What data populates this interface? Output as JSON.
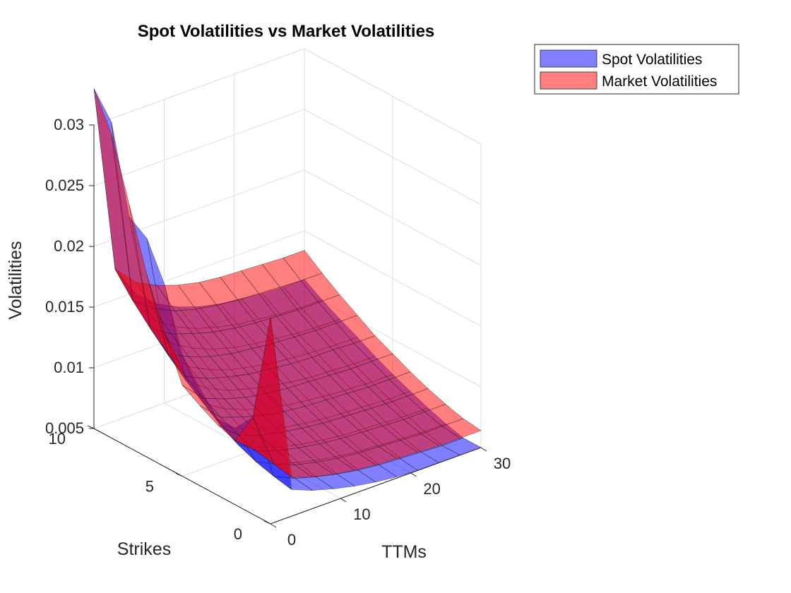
{
  "chart_data": {
    "type": "surface3d",
    "title": "Spot Volatilities vs Market Volatilities",
    "xlabel": "TTMs",
    "ylabel": "Strikes",
    "zlabel": "Volatilities",
    "xlim": [
      0,
      30
    ],
    "ylim": [
      0,
      10
    ],
    "zlim": [
      0.005,
      0.03
    ],
    "xticks": [
      "0",
      "10",
      "20",
      "30"
    ],
    "yticks": [
      "0",
      "5",
      "10"
    ],
    "zticks": [
      "0.005",
      "0.01",
      "0.015",
      "0.02",
      "0.025",
      "0.03"
    ],
    "grid": true,
    "legend_position": "outside-top-right",
    "x": [
      0,
      3,
      6,
      9,
      12,
      15,
      18,
      21,
      24,
      27,
      30
    ],
    "y": [
      0,
      1,
      2,
      3,
      4,
      5,
      6,
      7,
      8,
      9,
      10
    ],
    "series": [
      {
        "name": "Spot Volatilities",
        "color": "#0000ff",
        "opacity": 0.5,
        "z": [
          [
            0.022,
            0.0072,
            0.0065,
            0.006,
            0.0056,
            0.0053,
            0.0051,
            0.0049,
            0.0048,
            0.0047,
            0.0047
          ],
          [
            0.013,
            0.0075,
            0.0067,
            0.0062,
            0.0058,
            0.0055,
            0.0053,
            0.0052,
            0.0051,
            0.005,
            0.005
          ],
          [
            0.0113,
            0.0079,
            0.0071,
            0.0066,
            0.0062,
            0.0059,
            0.0057,
            0.0056,
            0.0055,
            0.0054,
            0.0054
          ],
          [
            0.0113,
            0.0085,
            0.0077,
            0.0071,
            0.0067,
            0.0064,
            0.0062,
            0.0061,
            0.006,
            0.0059,
            0.0059
          ],
          [
            0.013,
            0.0093,
            0.0084,
            0.0078,
            0.0073,
            0.007,
            0.0068,
            0.0067,
            0.0066,
            0.0065,
            0.0065
          ],
          [
            0.015,
            0.0104,
            0.0093,
            0.0086,
            0.0081,
            0.0077,
            0.0075,
            0.0073,
            0.0072,
            0.0071,
            0.0071
          ],
          [
            0.02,
            0.0115,
            0.0102,
            0.0094,
            0.0089,
            0.0085,
            0.0082,
            0.008,
            0.0079,
            0.0078,
            0.0078
          ],
          [
            0.023,
            0.0128,
            0.0112,
            0.0103,
            0.0097,
            0.0093,
            0.009,
            0.0088,
            0.0087,
            0.0086,
            0.0086
          ],
          [
            0.024,
            0.0142,
            0.0123,
            0.0113,
            0.0106,
            0.0101,
            0.0098,
            0.0096,
            0.0094,
            0.0093,
            0.0093
          ],
          [
            0.031,
            0.0158,
            0.0135,
            0.0123,
            0.0115,
            0.011,
            0.0106,
            0.0104,
            0.0102,
            0.0101,
            0.0101
          ],
          [
            0.033,
            0.0176,
            0.0148,
            0.0134,
            0.0125,
            0.0119,
            0.0115,
            0.0113,
            0.0111,
            0.011,
            0.011
          ]
        ]
      },
      {
        "name": "Market Volatilities",
        "color": "#ff0000",
        "opacity": 0.5,
        "z": [
          [
            0.022,
            0.0082,
            0.0076,
            0.0072,
            0.0069,
            0.0067,
            0.0066,
            0.0065,
            0.0064,
            0.0064,
            0.0064
          ],
          [
            0.013,
            0.0085,
            0.0078,
            0.0074,
            0.0071,
            0.0069,
            0.0068,
            0.0067,
            0.0066,
            0.0066,
            0.0066
          ],
          [
            0.0103,
            0.0088,
            0.0082,
            0.0078,
            0.0075,
            0.0073,
            0.0072,
            0.0071,
            0.007,
            0.007,
            0.007
          ],
          [
            0.0108,
            0.0093,
            0.0087,
            0.0083,
            0.008,
            0.0078,
            0.0077,
            0.0076,
            0.0075,
            0.0075,
            0.0075
          ],
          [
            0.0116,
            0.01,
            0.0094,
            0.0089,
            0.0086,
            0.0084,
            0.0083,
            0.0082,
            0.0081,
            0.0081,
            0.0081
          ],
          [
            0.0125,
            0.0108,
            0.0101,
            0.0096,
            0.0093,
            0.0091,
            0.009,
            0.0089,
            0.0088,
            0.0088,
            0.0088
          ],
          [
            0.016,
            0.0118,
            0.011,
            0.0105,
            0.0101,
            0.0099,
            0.0097,
            0.0096,
            0.0096,
            0.0095,
            0.0095
          ],
          [
            0.02,
            0.0129,
            0.012,
            0.0114,
            0.011,
            0.0108,
            0.0106,
            0.0105,
            0.0104,
            0.0104,
            0.0104
          ],
          [
            0.025,
            0.0142,
            0.0131,
            0.0125,
            0.012,
            0.0117,
            0.0115,
            0.0114,
            0.0113,
            0.0113,
            0.0113
          ],
          [
            0.03,
            0.0157,
            0.0144,
            0.0136,
            0.0131,
            0.0128,
            0.0126,
            0.0125,
            0.0124,
            0.0123,
            0.0123
          ],
          [
            0.033,
            0.0175,
            0.0158,
            0.0149,
            0.0143,
            0.0139,
            0.0137,
            0.0136,
            0.0135,
            0.0134,
            0.0134
          ]
        ]
      }
    ]
  }
}
